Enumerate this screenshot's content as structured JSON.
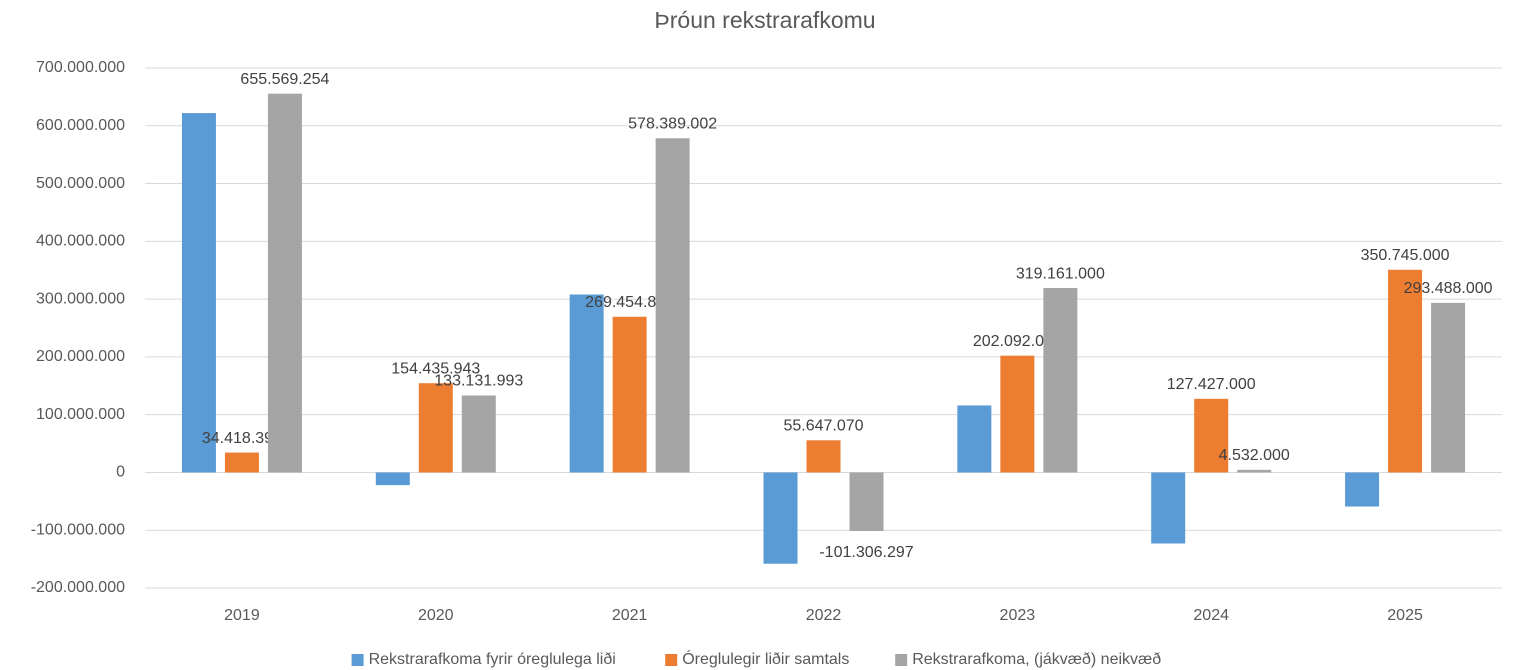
{
  "chart_data": {
    "type": "bar",
    "title": "Þróun rekstrarafkomu",
    "categories": [
      "2019",
      "2020",
      "2021",
      "2022",
      "2023",
      "2024",
      "2025"
    ],
    "series": [
      {
        "name": "Rekstrarafkoma fyrir óreglulega liði",
        "color": "#5b9bd5",
        "values": [
          622000000,
          -22000000,
          308000000,
          -158000000,
          116000000,
          -123000000,
          -59000000
        ]
      },
      {
        "name": "Óreglulegir liðir samtals",
        "color": "#ed7d31",
        "values": [
          34418393,
          154435943,
          269454838,
          55647070,
          202092000,
          127427000,
          350745000
        ],
        "value_labels": [
          "34.418.393",
          "154.435.943",
          "269.454.838",
          "55.647.070",
          "202.092.000",
          "127.427.000",
          "350.745.000"
        ]
      },
      {
        "name": "Rekstrarafkoma, (jákvæð) neikvæð",
        "color": "#a5a5a5",
        "values": [
          655569254,
          133131993,
          578389002,
          -101306297,
          319161000,
          4532000,
          293488000
        ],
        "value_labels": [
          "655.569.254",
          "133.131.993",
          "578.389.002",
          "-101.306.297",
          "319.161.000",
          "4.532.000",
          "293.488.000"
        ]
      }
    ],
    "ylim": [
      -200000000,
      700000000
    ],
    "yticks": [
      {
        "value": -200000000,
        "label": "-200.000.000"
      },
      {
        "value": -100000000,
        "label": "-100.000.000"
      },
      0,
      {
        "value": 100000000,
        "label": "100.000.000"
      },
      {
        "value": 200000000,
        "label": "200.000.000"
      },
      {
        "value": 300000000,
        "label": "300.000.000"
      },
      {
        "value": 400000000,
        "label": "400.000.000"
      },
      {
        "value": 500000000,
        "label": "500.000.000"
      },
      {
        "value": 600000000,
        "label": "600.000.000"
      },
      {
        "value": 700000000,
        "label": "700.000.000"
      }
    ],
    "grid": true,
    "legend": "bottom"
  }
}
